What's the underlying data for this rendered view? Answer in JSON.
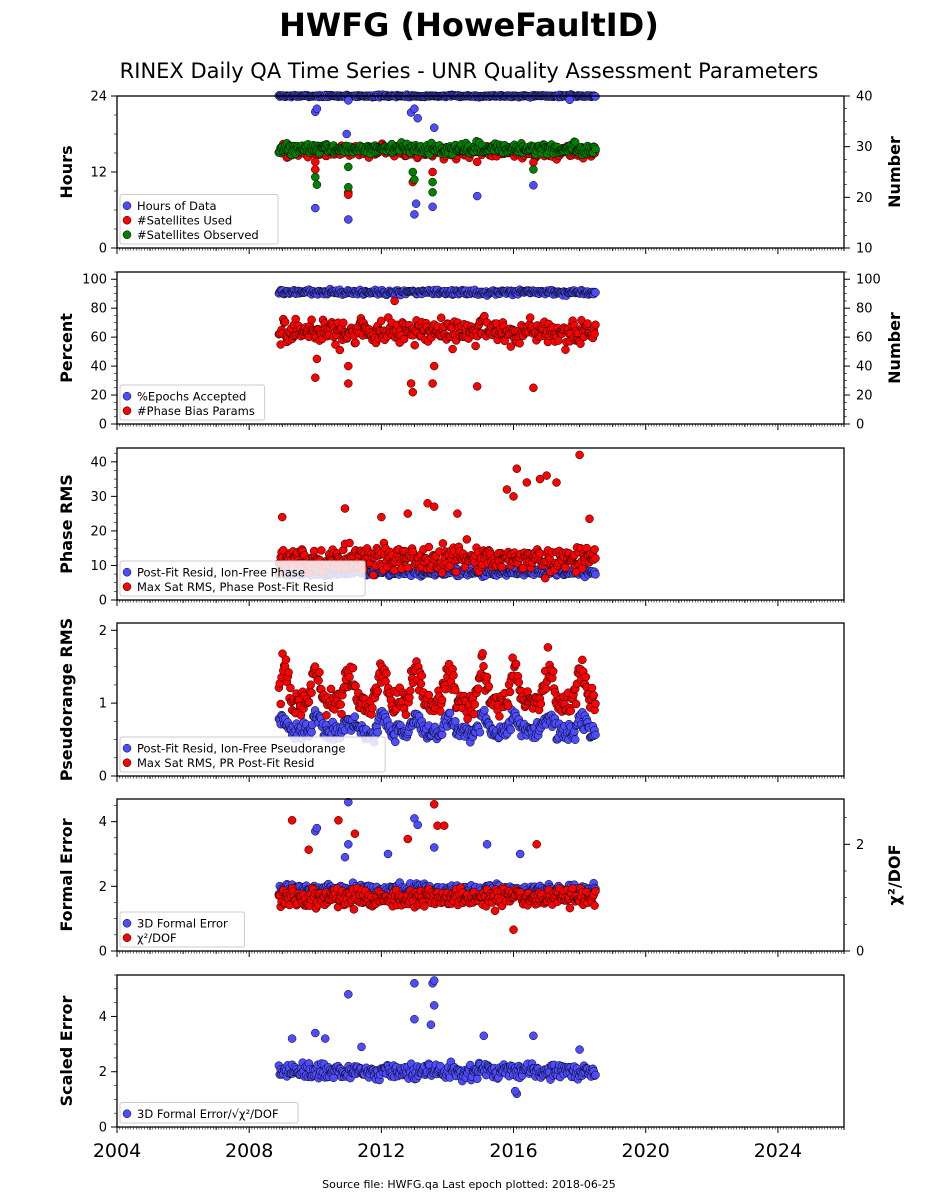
{
  "title": "HWFG (HoweFaultID)",
  "subtitle": "RINEX Daily QA Time Series - UNR Quality Assessment Parameters",
  "footer": "Source file: HWFG.qa Last epoch plotted: 2018-06-25",
  "colors": {
    "blue": "#4d4dff",
    "red": "#ff0000",
    "green": "#008000",
    "edge": "#000000"
  },
  "chart_data": [
    {
      "type": "scatter",
      "ylabel": "Hours",
      "ylabel_right": "Number",
      "ylim": [
        0,
        24
      ],
      "ylim_right": [
        10,
        40
      ],
      "yticks": [
        "0",
        "12",
        "24"
      ],
      "yticks_right": [
        "10",
        "20",
        "30",
        "40"
      ],
      "legend_position": "lower-left",
      "series": [
        {
          "name": "Hours of Data",
          "color": "#4d4dff",
          "axis": "left",
          "base": 24.0,
          "noise": 0.12,
          "outliers": [
            [
              2010.0,
              21.5
            ],
            [
              2010.05,
              22.0
            ],
            [
              2010.0,
              6.3
            ],
            [
              2011.0,
              4.5
            ],
            [
              2010.95,
              18.0
            ],
            [
              2012.9,
              21.4
            ],
            [
              2013.0,
              22.0
            ],
            [
              2013.1,
              20.5
            ],
            [
              2013.0,
              5.3
            ],
            [
              2013.05,
              7.0
            ],
            [
              2013.6,
              19.0
            ],
            [
              2013.55,
              6.5
            ],
            [
              2014.9,
              8.2
            ],
            [
              2016.6,
              9.9
            ],
            [
              2011.0,
              23.3
            ],
            [
              2017.7,
              23.4
            ]
          ]
        },
        {
          "name": "#Satellites Used",
          "color": "#ff0000",
          "axis": "right",
          "base": 29.0,
          "noise": 0.8,
          "outliers": [
            [
              2010.0,
              25.5
            ],
            [
              2010.0,
              27.0
            ],
            [
              2011.0,
              21.0
            ],
            [
              2011.0,
              20.5
            ],
            [
              2012.95,
              23.0
            ],
            [
              2013.55,
              25.0
            ],
            [
              2014.9,
              27.0
            ],
            [
              2016.6,
              26.9
            ],
            [
              2009.5,
              30.0
            ],
            [
              2012.1,
              30.0
            ]
          ]
        },
        {
          "name": "#Satellites Observed",
          "color": "#008000",
          "axis": "right",
          "base": 29.6,
          "noise": 0.7,
          "outliers": [
            [
              2010.0,
              24.0
            ],
            [
              2010.05,
              22.5
            ],
            [
              2011.0,
              26.0
            ],
            [
              2011.0,
              22.0
            ],
            [
              2012.95,
              25.0
            ],
            [
              2013.0,
              23.5
            ],
            [
              2013.55,
              23.0
            ],
            [
              2013.55,
              21.0
            ],
            [
              2016.6,
              25.5
            ]
          ]
        }
      ]
    },
    {
      "type": "scatter",
      "ylabel": "Percent",
      "ylabel_right": "Number",
      "ylim": [
        0,
        105
      ],
      "ylim_right": [
        0,
        105
      ],
      "yticks": [
        "0",
        "20",
        "40",
        "60",
        "80",
        "100"
      ],
      "yticks_right": [
        "0",
        "20",
        "40",
        "60",
        "80",
        "100"
      ],
      "legend_position": "lower-left",
      "series": [
        {
          "name": "%Epochs Accepted",
          "color": "#4d4dff",
          "axis": "left",
          "base": 91.0,
          "noise": 1.2,
          "outliers": []
        },
        {
          "name": "#Phase Bias Params",
          "color": "#ff0000",
          "axis": "right",
          "base": 64.0,
          "noise": 6.0,
          "outliers": [
            [
              2010.0,
              32.0
            ],
            [
              2010.05,
              45.0
            ],
            [
              2011.0,
              28.0
            ],
            [
              2011.0,
              40.0
            ],
            [
              2012.9,
              28.0
            ],
            [
              2012.95,
              22.0
            ],
            [
              2013.55,
              28.0
            ],
            [
              2013.6,
              40.0
            ],
            [
              2014.9,
              26.0
            ],
            [
              2016.6,
              25.0
            ],
            [
              2012.4,
              85.0
            ]
          ]
        }
      ]
    },
    {
      "type": "scatter",
      "ylabel": "Phase RMS",
      "ylim": [
        0,
        44
      ],
      "yticks": [
        "0",
        "10",
        "20",
        "30",
        "40"
      ],
      "legend_position": "lower-left",
      "series": [
        {
          "name": "Post-Fit Resid, Ion-Free Phase",
          "color": "#4d4dff",
          "axis": "left",
          "base": 8.0,
          "noise": 0.7,
          "outliers": []
        },
        {
          "name": "Max Sat RMS, Phase Post-Fit Resid",
          "color": "#ff0000",
          "axis": "left",
          "base": 12.0,
          "noise": 2.6,
          "outliers": [
            [
              2018.0,
              42.0
            ],
            [
              2016.1,
              38.0
            ],
            [
              2016.4,
              34.0
            ],
            [
              2016.8,
              35.0
            ],
            [
              2017.0,
              36.0
            ],
            [
              2017.3,
              34.0
            ],
            [
              2013.4,
              28.0
            ],
            [
              2013.6,
              27.0
            ],
            [
              2016.0,
              30.0
            ],
            [
              2015.8,
              32.0
            ],
            [
              2010.9,
              26.5
            ],
            [
              2009.0,
              24.0
            ],
            [
              2014.3,
              25.0
            ],
            [
              2018.3,
              23.5
            ],
            [
              2012.0,
              24.0
            ],
            [
              2012.8,
              25.0
            ]
          ]
        }
      ]
    },
    {
      "type": "scatter",
      "ylabel": "Pseudorange RMS",
      "ylim": [
        0,
        2.1
      ],
      "yticks": [
        "0",
        "1",
        "2"
      ],
      "legend_position": "lower-left",
      "series": [
        {
          "name": "Post-Fit Resid, Ion-Free Pseudorange",
          "color": "#4d4dff",
          "axis": "left",
          "base": 0.6,
          "noise": 0.08,
          "seasonal_amp": 0.2,
          "outliers": []
        },
        {
          "name": "Max Sat RMS, PR Post-Fit Resid",
          "color": "#ff0000",
          "axis": "left",
          "base": 1.0,
          "noise": 0.12,
          "seasonal_amp": 0.45,
          "outliers": []
        }
      ]
    },
    {
      "type": "scatter",
      "ylabel": "Formal Error",
      "ylabel_right": "χ²/DOF",
      "ylim": [
        0,
        4.7
      ],
      "ylim_right": [
        0,
        2.85
      ],
      "yticks": [
        "0",
        "2",
        "4"
      ],
      "yticks_right": [
        "0",
        "2"
      ],
      "legend_position": "lower-left",
      "series": [
        {
          "name": "3D Formal Error",
          "color": "#4d4dff",
          "axis": "left",
          "base": 1.9,
          "noise": 0.12,
          "outliers": [
            [
              2010.0,
              3.7
            ],
            [
              2010.05,
              3.8
            ],
            [
              2011.0,
              4.6
            ],
            [
              2011.0,
              3.3
            ],
            [
              2010.9,
              2.9
            ],
            [
              2013.0,
              4.1
            ],
            [
              2013.1,
              3.9
            ],
            [
              2013.6,
              3.2
            ],
            [
              2012.2,
              3.0
            ],
            [
              2015.2,
              3.3
            ],
            [
              2016.2,
              3.0
            ]
          ]
        },
        {
          "name": "χ²/DOF",
          "color": "#ff0000",
          "axis": "right",
          "base": 1.0,
          "noise": 0.12,
          "outliers": [
            [
              2009.3,
              2.45
            ],
            [
              2010.7,
              2.45
            ],
            [
              2013.6,
              2.75
            ],
            [
              2013.7,
              2.35
            ],
            [
              2011.2,
              2.2
            ],
            [
              2016.7,
              2.0
            ],
            [
              2016.0,
              0.4
            ],
            [
              2009.8,
              1.9
            ],
            [
              2012.8,
              2.1
            ],
            [
              2013.9,
              2.35
            ]
          ]
        }
      ]
    },
    {
      "type": "scatter",
      "ylabel": "Scaled Error",
      "ylim": [
        0,
        5.5
      ],
      "yticks": [
        "0",
        "2",
        "4"
      ],
      "legend_position": "lower-left",
      "series": [
        {
          "name": "3D Formal Error/√χ²/DOF",
          "color": "#4d4dff",
          "axis": "left",
          "base": 2.0,
          "noise": 0.2,
          "outliers": [
            [
              2011.0,
              4.8
            ],
            [
              2013.0,
              5.2
            ],
            [
              2013.55,
              5.2
            ],
            [
              2013.6,
              5.3
            ],
            [
              2013.6,
              4.4
            ],
            [
              2013.0,
              3.9
            ],
            [
              2013.5,
              3.7
            ],
            [
              2009.3,
              3.2
            ],
            [
              2010.0,
              3.4
            ],
            [
              2010.3,
              3.2
            ],
            [
              2015.1,
              3.3
            ],
            [
              2016.6,
              3.3
            ],
            [
              2016.1,
              1.2
            ],
            [
              2016.05,
              1.3
            ],
            [
              2011.4,
              2.9
            ],
            [
              2018.0,
              2.8
            ]
          ]
        }
      ]
    }
  ],
  "x_axis": {
    "xlim": [
      2004,
      2026
    ],
    "xticks": [
      "2004",
      "2008",
      "2012",
      "2016",
      "2020",
      "2024"
    ],
    "data_start": 2008.9,
    "data_end": 2018.48
  }
}
